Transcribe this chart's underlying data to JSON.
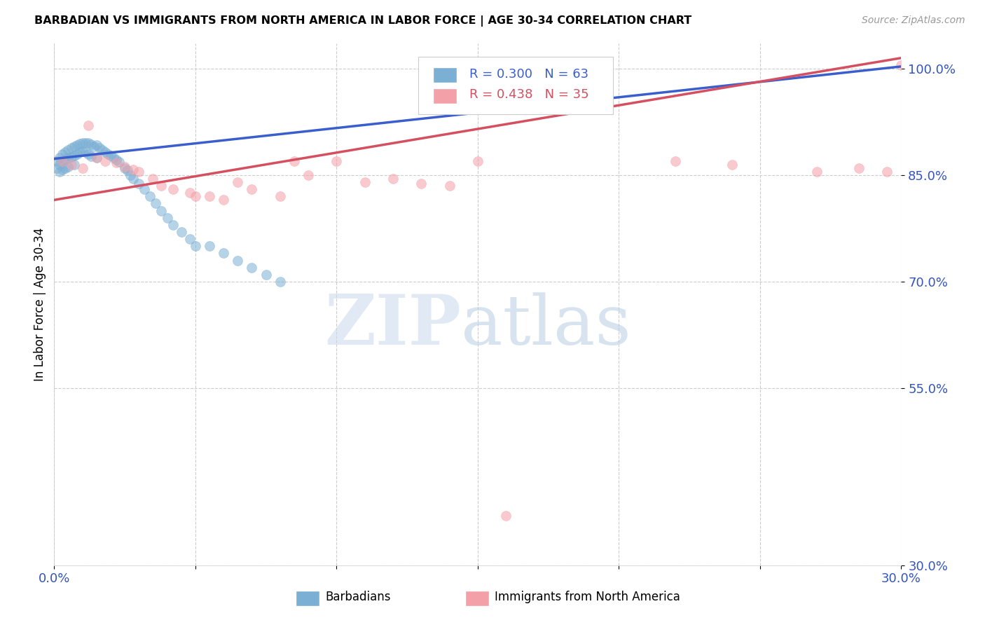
{
  "title": "BARBADIAN VS IMMIGRANTS FROM NORTH AMERICA IN LABOR FORCE | AGE 30-34 CORRELATION CHART",
  "source": "Source: ZipAtlas.com",
  "ylabel": "In Labor Force | Age 30-34",
  "xlim": [
    0.0,
    0.3
  ],
  "ylim": [
    0.3,
    1.035
  ],
  "ytick_positions": [
    0.3,
    0.55,
    0.7,
    0.85,
    1.0
  ],
  "ytick_labels": [
    "30.0%",
    "55.0%",
    "70.0%",
    "85.0%",
    "100.0%"
  ],
  "xtick_positions": [
    0.0,
    0.05,
    0.1,
    0.15,
    0.2,
    0.25,
    0.3
  ],
  "xtick_labels": [
    "0.0%",
    "",
    "",
    "",
    "",
    "",
    "30.0%"
  ],
  "blue_color": "#7bafd4",
  "pink_color": "#f4a0a8",
  "blue_line_color": "#3a5fcd",
  "pink_line_color": "#d45060",
  "legend_R_blue": "0.300",
  "legend_N_blue": "63",
  "legend_R_pink": "0.438",
  "legend_N_pink": "35",
  "blue_label": "Barbadians",
  "pink_label": "Immigrants from North America",
  "blue_line_x0": 0.0,
  "blue_line_y0": 0.873,
  "blue_line_x1": 0.3,
  "blue_line_y1": 1.003,
  "pink_line_x0": 0.0,
  "pink_line_y0": 0.815,
  "pink_line_x1": 0.3,
  "pink_line_y1": 1.015,
  "blue_x": [
    0.001,
    0.001,
    0.002,
    0.002,
    0.002,
    0.003,
    0.003,
    0.003,
    0.004,
    0.004,
    0.004,
    0.005,
    0.005,
    0.005,
    0.006,
    0.006,
    0.007,
    0.007,
    0.007,
    0.008,
    0.008,
    0.009,
    0.009,
    0.01,
    0.01,
    0.011,
    0.011,
    0.012,
    0.012,
    0.013,
    0.013,
    0.014,
    0.015,
    0.015,
    0.016,
    0.017,
    0.018,
    0.019,
    0.02,
    0.021,
    0.022,
    0.023,
    0.025,
    0.026,
    0.027,
    0.028,
    0.03,
    0.032,
    0.034,
    0.036,
    0.038,
    0.04,
    0.042,
    0.045,
    0.048,
    0.05,
    0.055,
    0.06,
    0.065,
    0.07,
    0.075,
    0.08,
    0.185
  ],
  "blue_y": [
    0.87,
    0.86,
    0.875,
    0.865,
    0.855,
    0.88,
    0.87,
    0.858,
    0.882,
    0.872,
    0.86,
    0.885,
    0.875,
    0.862,
    0.888,
    0.876,
    0.89,
    0.878,
    0.865,
    0.892,
    0.88,
    0.894,
    0.882,
    0.895,
    0.883,
    0.895,
    0.882,
    0.895,
    0.88,
    0.893,
    0.877,
    0.89,
    0.892,
    0.875,
    0.888,
    0.885,
    0.882,
    0.88,
    0.878,
    0.875,
    0.872,
    0.869,
    0.86,
    0.857,
    0.85,
    0.845,
    0.838,
    0.83,
    0.82,
    0.81,
    0.8,
    0.79,
    0.78,
    0.77,
    0.76,
    0.75,
    0.75,
    0.74,
    0.73,
    0.72,
    0.71,
    0.7,
    1.005
  ],
  "pink_x": [
    0.003,
    0.006,
    0.01,
    0.012,
    0.015,
    0.018,
    0.022,
    0.025,
    0.028,
    0.03,
    0.035,
    0.038,
    0.042,
    0.048,
    0.05,
    0.055,
    0.06,
    0.065,
    0.07,
    0.08,
    0.085,
    0.09,
    0.1,
    0.11,
    0.12,
    0.13,
    0.14,
    0.15,
    0.16,
    0.22,
    0.24,
    0.27,
    0.285,
    0.295,
    0.3
  ],
  "pink_y": [
    0.87,
    0.865,
    0.86,
    0.92,
    0.875,
    0.87,
    0.868,
    0.862,
    0.858,
    0.855,
    0.845,
    0.835,
    0.83,
    0.825,
    0.82,
    0.82,
    0.815,
    0.84,
    0.83,
    0.82,
    0.87,
    0.85,
    0.87,
    0.84,
    0.845,
    0.838,
    0.835,
    0.87,
    0.37,
    0.87,
    0.865,
    0.855,
    0.86,
    0.855,
    1.005
  ]
}
